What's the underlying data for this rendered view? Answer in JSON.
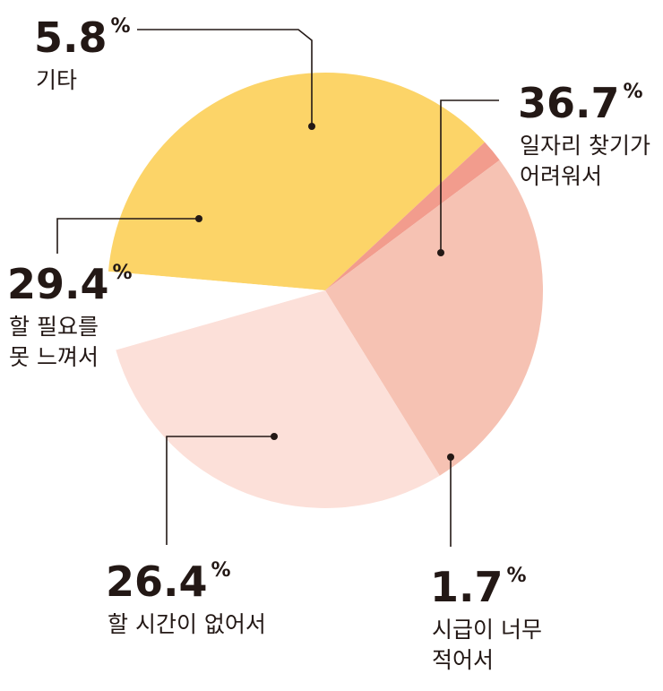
{
  "chart_data": {
    "type": "pie",
    "percent_symbol": "%",
    "slices": [
      {
        "label_lines": [
          "일자리 찾기가",
          "어려워서"
        ],
        "value": 36.7,
        "display": "36.7",
        "color": "#FCD468",
        "exploded": false
      },
      {
        "label_lines": [
          "시급이 너무",
          "적어서"
        ],
        "value": 1.7,
        "display": "1.7",
        "color": "#F29C8D",
        "exploded": false
      },
      {
        "label_lines": [
          "할 시간이 없어서"
        ],
        "value": 26.4,
        "display": "26.4",
        "color": "#F6C2B3",
        "exploded": false
      },
      {
        "label_lines": [
          "할 필요를",
          "못 느껴서"
        ],
        "value": 29.4,
        "display": "29.4",
        "color": "#FCE0D9",
        "exploded": false
      },
      {
        "label_lines": [
          "기타"
        ],
        "value": 5.8,
        "display": "5.8",
        "color": "#FFFFFF",
        "exploded": false
      }
    ]
  }
}
